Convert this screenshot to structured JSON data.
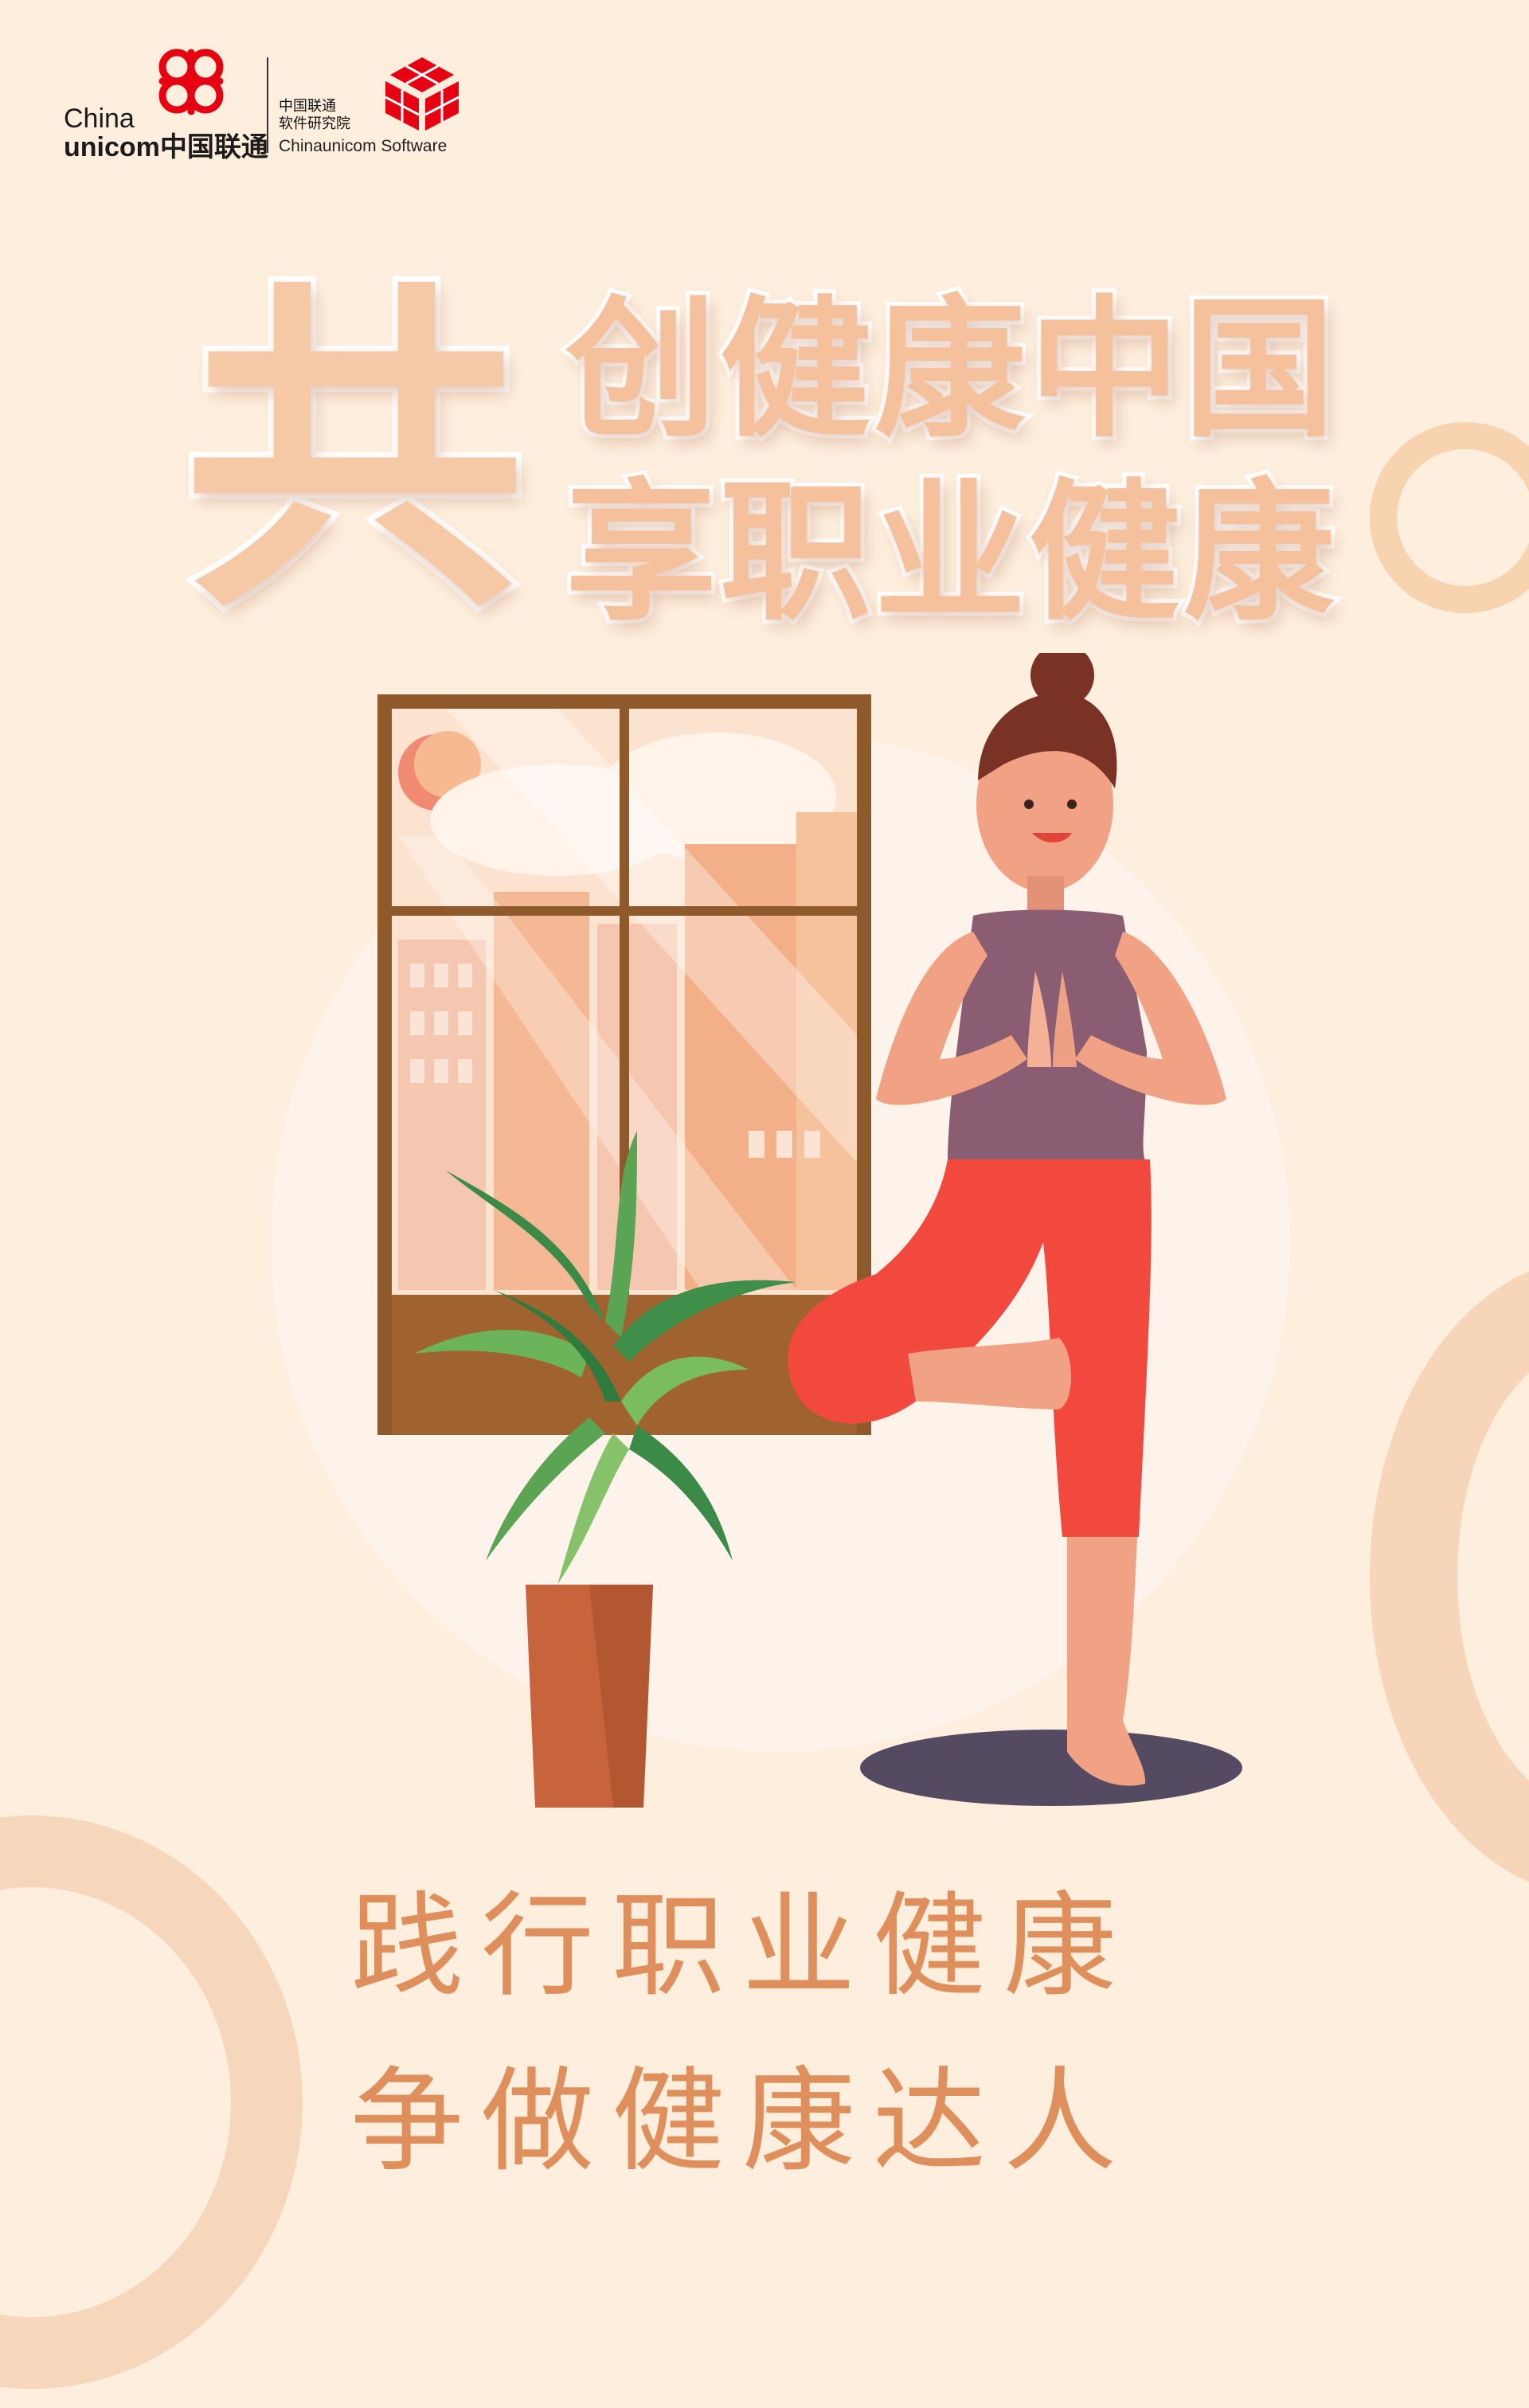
{
  "logos": {
    "unicom_line1": "China",
    "unicom_line2": "unicom中国联通",
    "software_cn_line1": "中国联通",
    "software_cn_line2": "软件研究院",
    "software_en": "Chinaunicom Software"
  },
  "headline": {
    "big_char": "共",
    "line1": "创健康中国",
    "line2": "享职业健康"
  },
  "slogans": {
    "line1": "践行职业健康",
    "line2": "争做健康达人"
  },
  "colors": {
    "background": "#fdeedd",
    "headline": "#f5c19d",
    "slogan": "#df8f5c",
    "brand_red": "#e60012"
  }
}
